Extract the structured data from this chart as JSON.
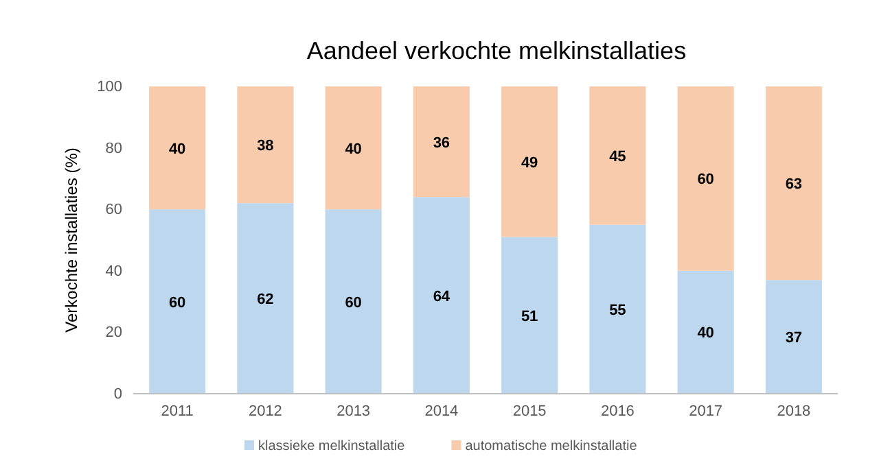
{
  "chart_data": {
    "type": "bar",
    "title": "Aandeel verkochte melkinstallaties",
    "ylabel": "Verkochte installaties (%)",
    "categories": [
      "2011",
      "2012",
      "2013",
      "2014",
      "2015",
      "2016",
      "2017",
      "2018"
    ],
    "stacked": true,
    "data_labels": true,
    "legend": "bottom",
    "grid": false,
    "ylim": [
      0,
      100
    ],
    "yticks": [
      0,
      20,
      40,
      60,
      80,
      100
    ],
    "series": [
      {
        "name": "klassieke melkinstallatie",
        "color": "#bdd7ee",
        "values": [
          60,
          62,
          60,
          64,
          51,
          55,
          40,
          37
        ]
      },
      {
        "name": "automatische melkinstallatie",
        "color": "#f8cbad",
        "values": [
          40,
          38,
          40,
          36,
          49,
          45,
          60,
          63
        ]
      }
    ]
  }
}
